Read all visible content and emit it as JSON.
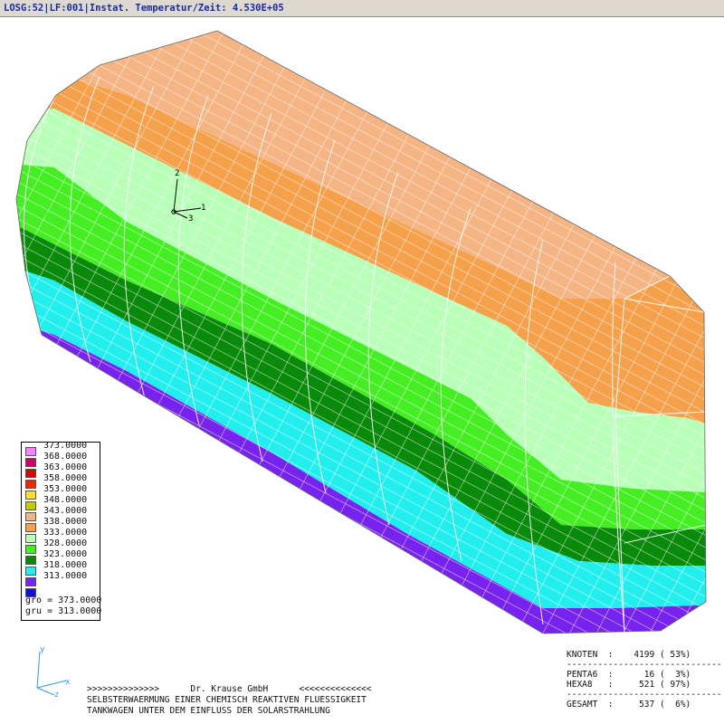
{
  "window": {
    "title": "LOSG:52|LF:001|Instat. Temperatur/Zeit: 4.530E+05"
  },
  "legend": {
    "levels": [
      {
        "value": "373.0000",
        "color": "#ff80ff"
      },
      {
        "value": "368.0000",
        "color": "#cc0066"
      },
      {
        "value": "363.0000",
        "color": "#dd0000"
      },
      {
        "value": "358.0000",
        "color": "#ff2200"
      },
      {
        "value": "353.0000",
        "color": "#ffdd33"
      },
      {
        "value": "348.0000",
        "color": "#c8c800"
      },
      {
        "value": "343.0000",
        "color": "#f4b483"
      },
      {
        "value": "338.0000",
        "color": "#f5a04a"
      },
      {
        "value": "333.0000",
        "color": "#b8ffb8"
      },
      {
        "value": "328.0000",
        "color": "#44ee22"
      },
      {
        "value": "323.0000",
        "color": "#0a8a0a"
      },
      {
        "value": "318.0000",
        "color": "#22eeee"
      },
      {
        "value": "313.0000",
        "color": "#7722ee"
      },
      {
        "value": "",
        "color": "#1111dd"
      }
    ],
    "max_label": "gro = 373.0000",
    "min_label": "gru = 313.0000"
  },
  "model_triad": {
    "axis1": "1",
    "axis2": "2",
    "axis3": "3"
  },
  "view_triad": {
    "y": "y",
    "x": "x",
    "z": "z"
  },
  "caption": {
    "line1": ">>>>>>>>>>>>>>      Dr. Krause GmbH      <<<<<<<<<<<<<<",
    "line2": "SELBSTERWAERMUNG EINER CHEMISCH REAKTIVEN FLUESSIGKEIT",
    "line3": "TANKWAGEN UNTER DEM EINFLUSS DER SOLARSTRAHLUNG"
  },
  "stats": {
    "knoten": "KNOTEN  :    4199 ( 53%)",
    "sep1": "------------------------------",
    "penta6": "PENTA6  :      16 (  3%)",
    "hexa8": "HEXA8   :     521 ( 97%)",
    "sep2": "------------------------------",
    "gesamt": "GESAMT  :     537 (  6%)"
  }
}
